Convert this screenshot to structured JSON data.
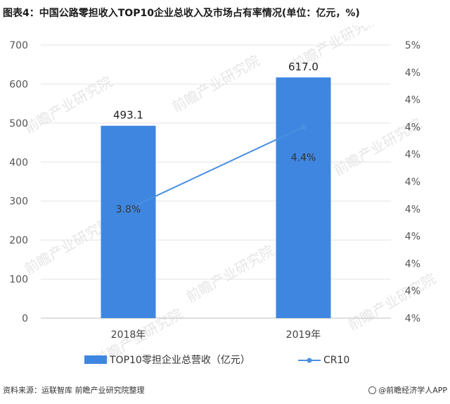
{
  "header": {
    "title": "图表4：中国公路零担收入TOP10企业总收入及市场占有率情况(单位：亿元，%)"
  },
  "footer": {
    "source": "资料来源：运联智库 前瞻产业研究院整理",
    "brand": "@前瞻经济学人APP"
  },
  "watermark": "前瞻产业研究院",
  "chart_data": {
    "type": "bar",
    "categories": [
      "2018年",
      "2019年"
    ],
    "series": [
      {
        "name": "TOP10零担企业总营收（亿元）",
        "type": "bar",
        "values": [
          493.1,
          617.0
        ],
        "labels": [
          "493.1",
          "617.0"
        ],
        "color": "#3f86e0",
        "axis": "left"
      },
      {
        "name": "CR10",
        "type": "line",
        "values": [
          3.8,
          4.4
        ],
        "labels": [
          "3.8%",
          "4.4%"
        ],
        "color": "#4a90e2",
        "axis": "right"
      }
    ],
    "y_left": {
      "ticks": [
        "0",
        "100",
        "200",
        "300",
        "400",
        "500",
        "600",
        "700"
      ],
      "ylim": [
        0,
        700
      ]
    },
    "y_right": {
      "ticks": [
        "4%",
        "4%",
        "4%",
        "4%",
        "4%",
        "4%",
        "4%",
        "4%",
        "4%",
        "4%",
        "5%"
      ],
      "ylim": [
        3.0,
        5.0
      ]
    },
    "grid": true,
    "legend_position": "bottom"
  }
}
